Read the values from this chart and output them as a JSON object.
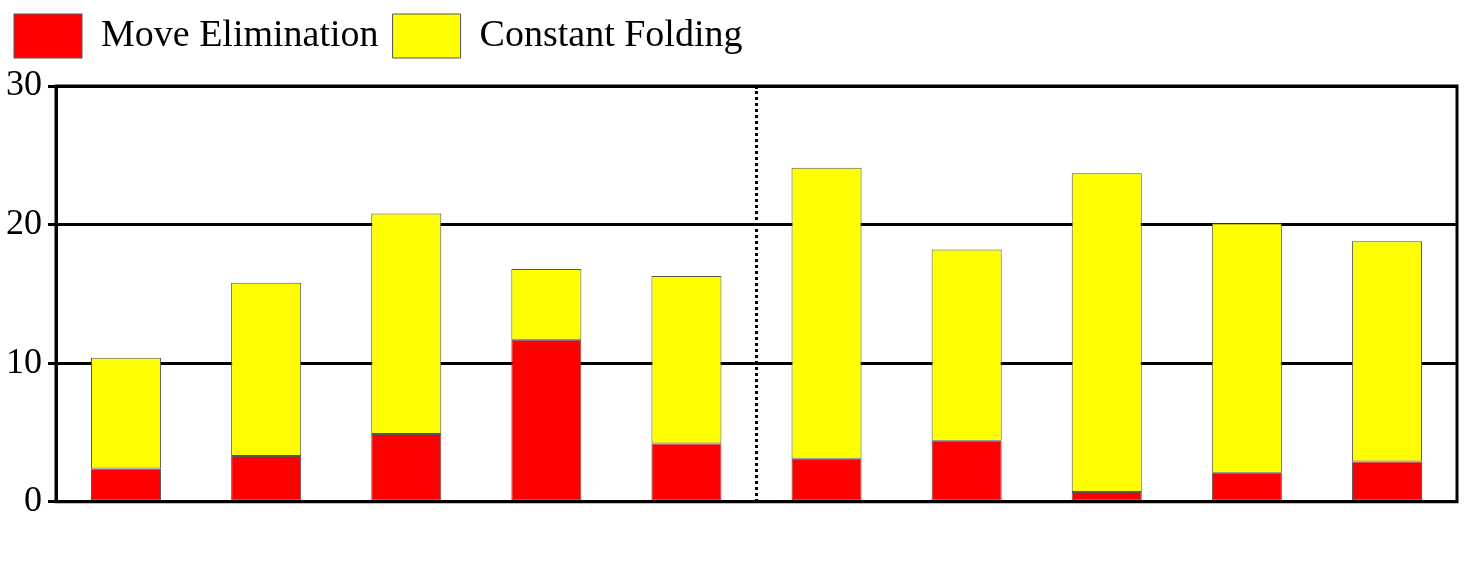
{
  "chart_data": {
    "type": "bar",
    "stacked": true,
    "categories": [
      null,
      null,
      null,
      null,
      null,
      null,
      null,
      null,
      null,
      null
    ],
    "series": [
      {
        "name": "Move Elimination",
        "color": "#ff0000",
        "values": [
          2.4,
          3.3,
          4.9,
          11.7,
          4.2,
          3.1,
          4.4,
          0.7,
          2.1,
          2.9
        ]
      },
      {
        "name": "Constant Folding",
        "color": "#ffff00",
        "values": [
          8.0,
          12.5,
          15.9,
          5.1,
          12.1,
          21.0,
          13.8,
          23.0,
          18.0,
          15.9
        ]
      }
    ],
    "ylim": [
      0,
      30
    ],
    "yticks": [
      0,
      10,
      20,
      30
    ],
    "grid": "y",
    "legend": "top left"
  }
}
